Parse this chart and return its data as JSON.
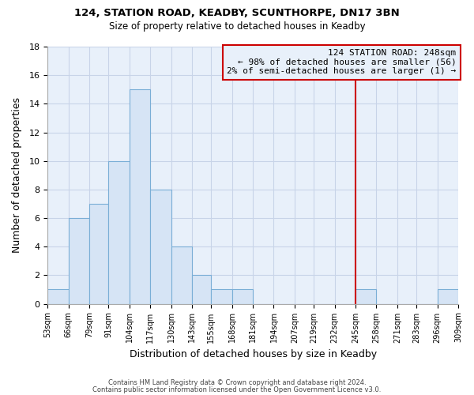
{
  "title": "124, STATION ROAD, KEADBY, SCUNTHORPE, DN17 3BN",
  "subtitle": "Size of property relative to detached houses in Keadby",
  "xlabel": "Distribution of detached houses by size in Keadby",
  "ylabel": "Number of detached properties",
  "bar_edges": [
    53,
    66,
    79,
    91,
    104,
    117,
    130,
    143,
    155,
    168,
    181,
    194,
    207,
    219,
    232,
    245,
    258,
    271,
    283,
    296,
    309
  ],
  "bar_heights": [
    1,
    6,
    7,
    10,
    15,
    8,
    4,
    2,
    1,
    1,
    0,
    0,
    0,
    0,
    0,
    1,
    0,
    0,
    0,
    1
  ],
  "bar_color": "#d6e4f5",
  "bar_edge_color": "#7aaed6",
  "tick_labels": [
    "53sqm",
    "66sqm",
    "79sqm",
    "91sqm",
    "104sqm",
    "117sqm",
    "130sqm",
    "143sqm",
    "155sqm",
    "168sqm",
    "181sqm",
    "194sqm",
    "207sqm",
    "219sqm",
    "232sqm",
    "245sqm",
    "258sqm",
    "271sqm",
    "283sqm",
    "296sqm",
    "309sqm"
  ],
  "vline_x": 245,
  "vline_color": "#cc0000",
  "annotation_line1": "124 STATION ROAD: 248sqm",
  "annotation_line2": "← 98% of detached houses are smaller (56)",
  "annotation_line3": "2% of semi-detached houses are larger (1) →",
  "annotation_box_facecolor": "#e8f0fa",
  "annotation_border_color": "#cc0000",
  "ylim": [
    0,
    18
  ],
  "yticks": [
    0,
    2,
    4,
    6,
    8,
    10,
    12,
    14,
    16,
    18
  ],
  "footer_line1": "Contains HM Land Registry data © Crown copyright and database right 2024.",
  "footer_line2": "Contains public sector information licensed under the Open Government Licence v3.0.",
  "background_color": "#ffffff",
  "plot_bg_color": "#e8f0fa",
  "grid_color": "#c8d4e8"
}
